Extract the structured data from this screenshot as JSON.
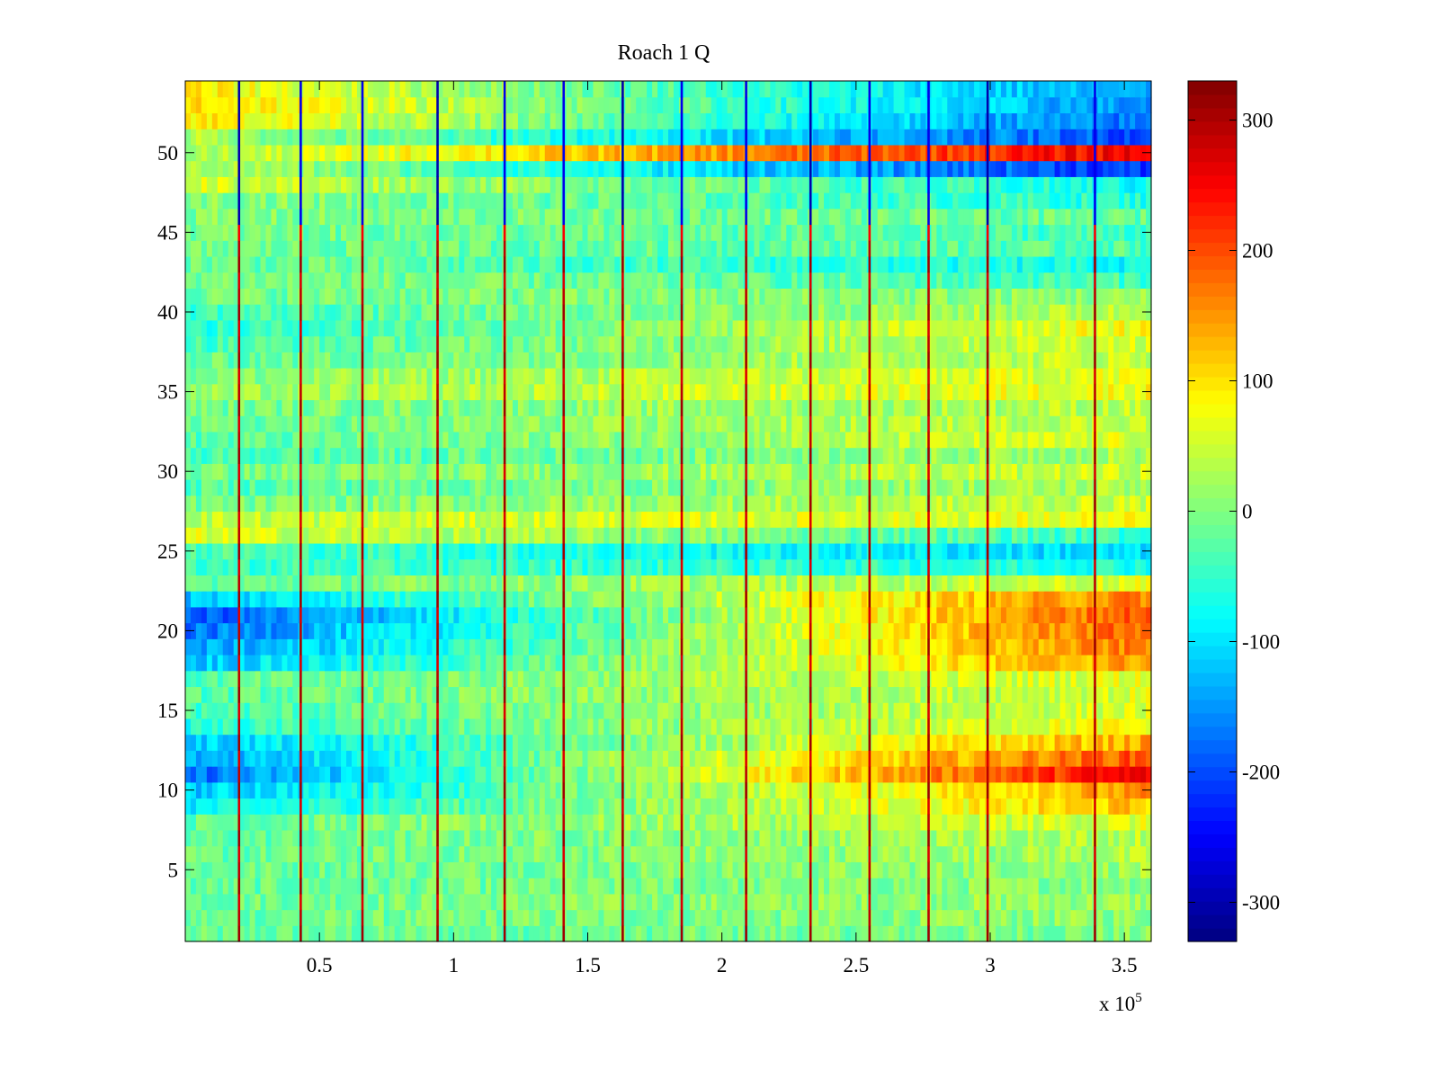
{
  "chart_data": {
    "type": "heatmap",
    "title": "Roach 1 Q",
    "xlabel": "",
    "ylabel": "",
    "x_exponent_label": "x 10",
    "x_exponent_power": "5",
    "xlim": [
      0,
      3.6
    ],
    "ylim": [
      0.5,
      54.5
    ],
    "x_ticks": [
      0.5,
      1,
      1.5,
      2,
      2.5,
      3,
      3.5
    ],
    "x_tick_labels": [
      "0.5",
      "1",
      "1.5",
      "2",
      "2.5",
      "3",
      "3.5"
    ],
    "y_ticks": [
      5,
      10,
      15,
      20,
      25,
      30,
      35,
      40,
      45,
      50
    ],
    "y_tick_labels": [
      "5",
      "10",
      "15",
      "20",
      "25",
      "30",
      "35",
      "40",
      "45",
      "50"
    ],
    "rows": 54,
    "colorbar": {
      "colormap": "jet",
      "clim": [
        -330,
        330
      ],
      "ticks": [
        -300,
        -200,
        -100,
        0,
        100,
        200,
        300
      ],
      "tick_labels": [
        "-300",
        "-200",
        "-100",
        "0",
        "100",
        "200",
        "300"
      ]
    },
    "stripe_x": [
      0.2,
      0.43,
      0.66,
      0.94,
      1.19,
      1.41,
      1.63,
      1.85,
      2.09,
      2.33,
      2.55,
      2.77,
      2.99,
      3.39
    ],
    "base_row_values": [
      -20,
      -15,
      -10,
      -20,
      -15,
      -20,
      -25,
      -20,
      -90,
      -120,
      -180,
      -140,
      -120,
      -60,
      -40,
      -30,
      -30,
      -120,
      -150,
      -180,
      -200,
      -120,
      -20,
      -40,
      -30,
      60,
      40,
      -10,
      -30,
      -10,
      -40,
      -30,
      -20,
      -10,
      10,
      0,
      -20,
      -40,
      -60,
      -40,
      -10,
      0,
      -10,
      -10,
      -5,
      0,
      10,
      60,
      40,
      20,
      30,
      100,
      110,
      90
    ],
    "right_row_values": [
      0,
      10,
      20,
      10,
      20,
      30,
      40,
      60,
      120,
      150,
      260,
      200,
      140,
      80,
      60,
      60,
      70,
      150,
      170,
      190,
      200,
      170,
      60,
      -60,
      -110,
      -50,
      70,
      50,
      30,
      50,
      30,
      60,
      50,
      40,
      80,
      70,
      50,
      60,
      80,
      40,
      10,
      -40,
      -80,
      -30,
      -40,
      -20,
      -60,
      -80,
      -220,
      260,
      -200,
      -180,
      -160,
      -150
    ]
  }
}
